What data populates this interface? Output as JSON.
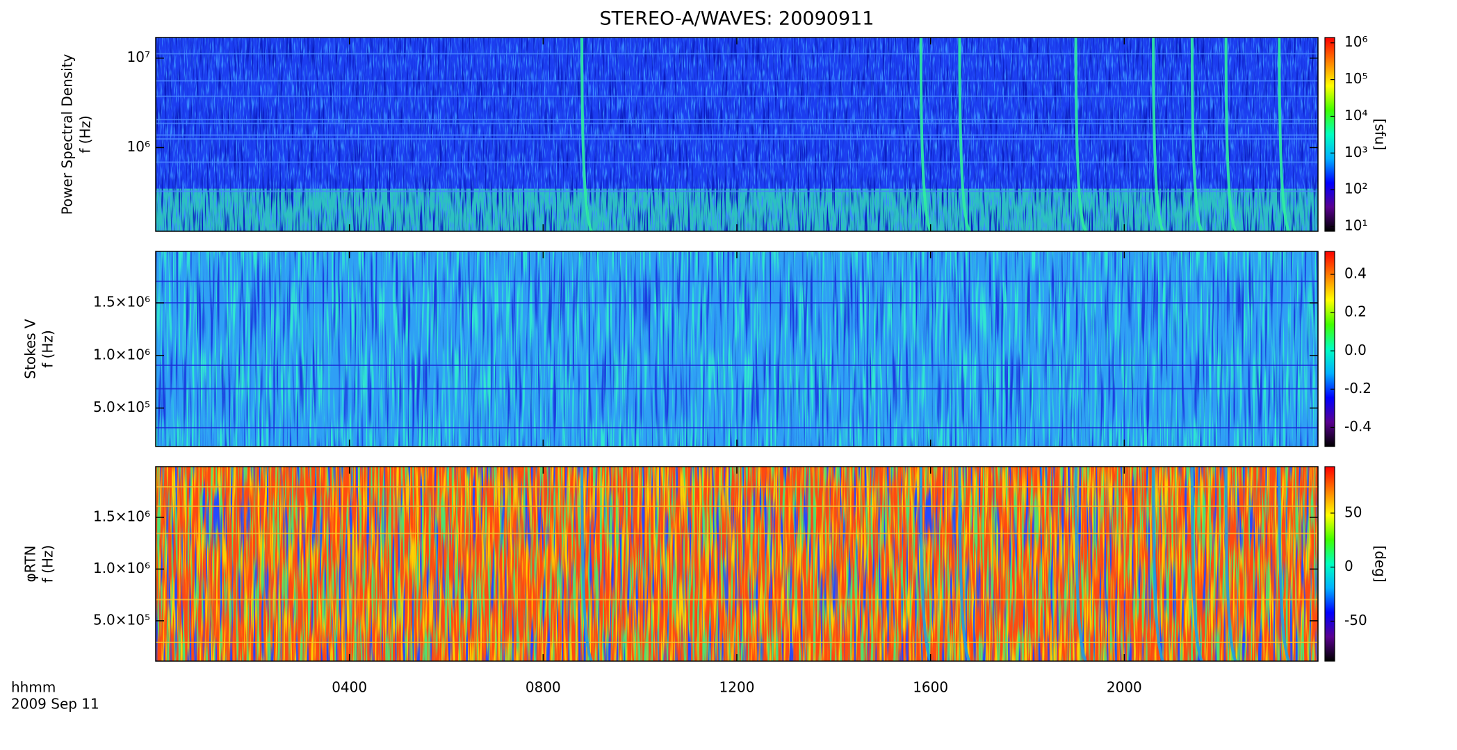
{
  "chart_data": [
    {
      "type": "heatmap",
      "title": "STEREO-A/WAVES: 20090911",
      "ylabel": [
        "Power Spectral Density",
        "f (Hz)"
      ],
      "log_y": true,
      "ylim": [
        116000,
        17000000
      ],
      "yticks": [
        {
          "value": 1000000,
          "label": "10⁶"
        },
        {
          "value": 10000000,
          "label": "10⁷"
        }
      ],
      "colormap": [
        "#000000",
        "#5a0090",
        "#0000ff",
        "#00b0ff",
        "#00ffc0",
        "#40ff00",
        "#ffff00",
        "#ff8000",
        "#ff0000"
      ],
      "colorbar": {
        "label": "[sfu]",
        "log": true,
        "zlim": [
          7.4,
          1400000
        ],
        "zticks": [
          {
            "value": 10,
            "label": "10¹"
          },
          {
            "value": 100,
            "label": "10²"
          },
          {
            "value": 1000,
            "label": "10³"
          },
          {
            "value": 10000,
            "label": "10⁴"
          },
          {
            "value": 100000,
            "label": "10⁵"
          },
          {
            "value": 1000000,
            "label": "10⁶"
          }
        ]
      }
    },
    {
      "type": "heatmap",
      "ylabel": [
        "Stokes V",
        "f (Hz)"
      ],
      "log_y": false,
      "ylim": [
        134000,
        1990000
      ],
      "yticks": [
        {
          "value": 500000,
          "label": "5.0×10⁵"
        },
        {
          "value": 1000000,
          "label": "1.0×10⁶"
        },
        {
          "value": 1500000,
          "label": "1.5×10⁶"
        }
      ],
      "colormap": [
        "#000000",
        "#5a0090",
        "#0000ff",
        "#00b0ff",
        "#00ffc0",
        "#40ff00",
        "#ffff00",
        "#ff8000",
        "#ff0000"
      ],
      "colorbar": {
        "log": false,
        "zlim": [
          -0.5,
          0.52
        ],
        "zticks": [
          -0.4,
          -0.2,
          {
            "value": 0,
            "label": "0.0"
          },
          0.2,
          0.4
        ]
      }
    },
    {
      "type": "heatmap",
      "ylabel": [
        "φRTN",
        "f (Hz)"
      ],
      "log_y": false,
      "ylim": [
        110000,
        1990000
      ],
      "yticks": [
        {
          "value": 500000,
          "label": "5.0×10⁵"
        },
        {
          "value": 1000000,
          "label": "1.0×10⁶"
        },
        {
          "value": 1500000,
          "label": "1.5×10⁶"
        }
      ],
      "colormap": [
        "#000000",
        "#5a0090",
        "#0000ff",
        "#00b0ff",
        "#00ffc0",
        "#40ff00",
        "#ffff00",
        "#ff8000",
        "#ff0000"
      ],
      "colorbar": {
        "label": "[deg]",
        "log": false,
        "zlim": [
          -87,
          93
        ],
        "zticks": [
          -50,
          0,
          50
        ]
      },
      "xlabel": [
        "hhmm",
        "2009 Sep 11"
      ],
      "xlim": [
        0,
        24
      ],
      "xticks": [
        {
          "value": 4,
          "label": "0400"
        },
        {
          "value": 8,
          "label": "0800"
        },
        {
          "value": 12,
          "label": "1200"
        },
        {
          "value": 16,
          "label": "1600"
        },
        {
          "value": 20,
          "label": "2000"
        }
      ]
    }
  ]
}
